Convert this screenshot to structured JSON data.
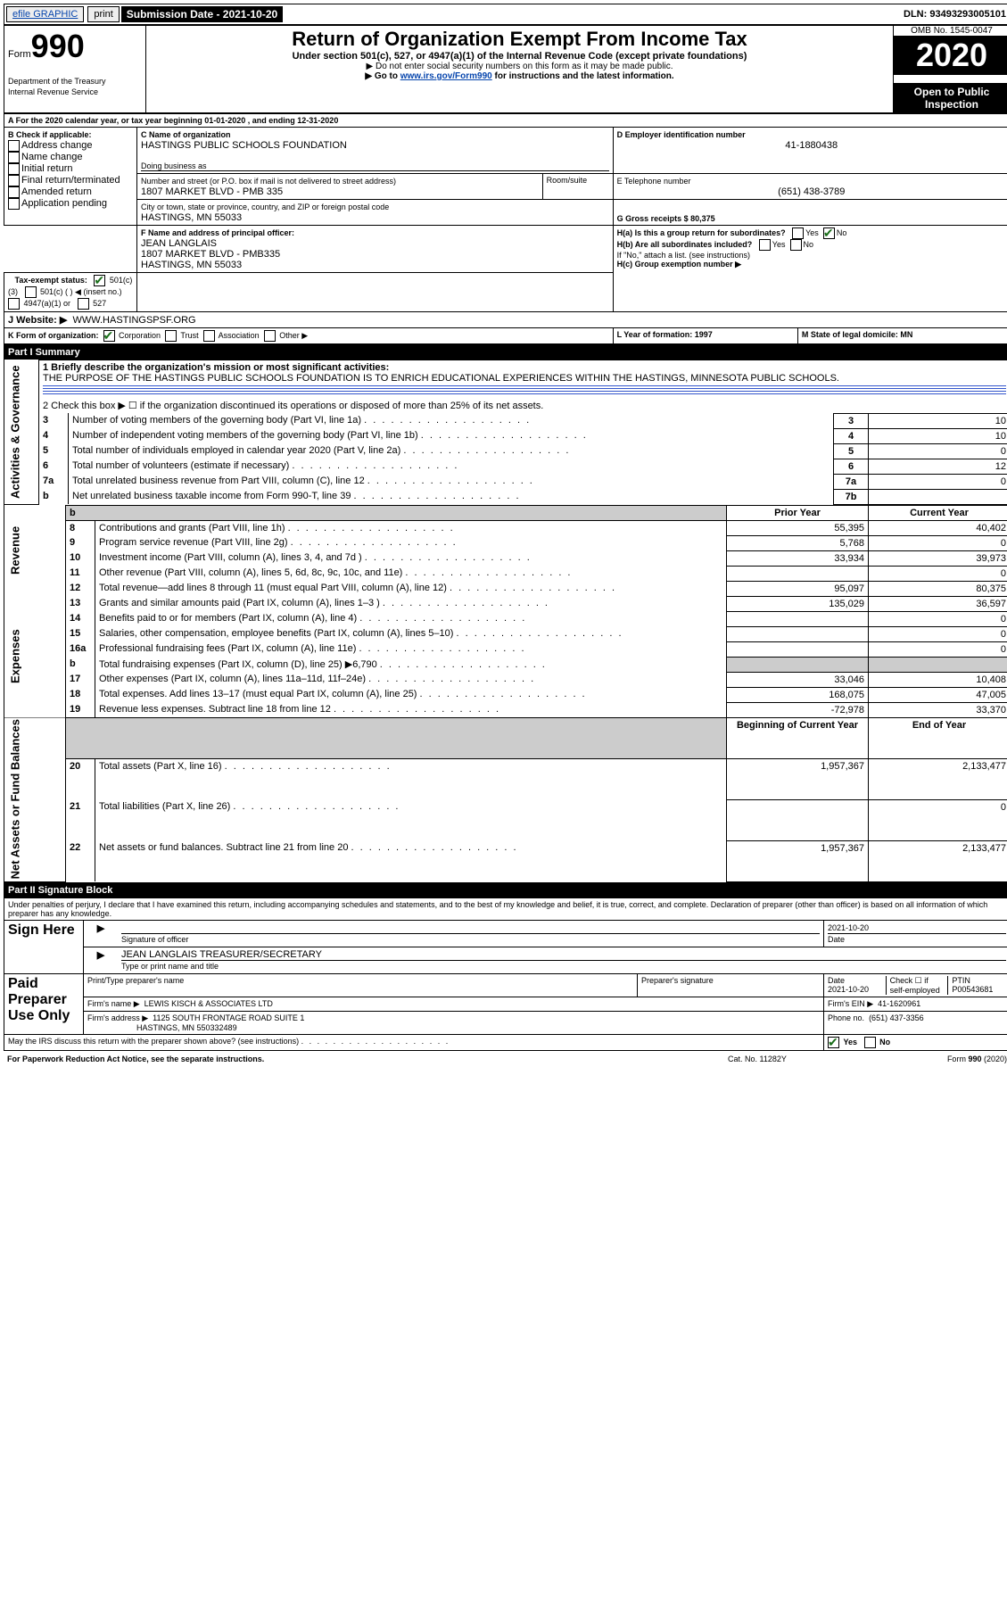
{
  "topbar": {
    "efile": "efile GRAPHIC",
    "print": "print",
    "submission_label": "Submission Date - 2021-10-20",
    "dln": "DLN: 93493293005101"
  },
  "header": {
    "form_label": "Form",
    "form_number": "990",
    "dept1": "Department of the Treasury",
    "dept2": "Internal Revenue Service",
    "title": "Return of Organization Exempt From Income Tax",
    "subtitle": "Under section 501(c), 527, or 4947(a)(1) of the Internal Revenue Code (except private foundations)",
    "sub2": "▶ Do not enter social security numbers on this form as it may be made public.",
    "sub3a": "▶ Go to ",
    "sub3_link": "www.irs.gov/Form990",
    "sub3b": " for instructions and the latest information.",
    "omb_label": "OMB No. 1545-0047",
    "year": "2020",
    "open_public": "Open to Public Inspection"
  },
  "sectionA": {
    "line": "A For the 2020 calendar year, or tax year beginning 01-01-2020   , and ending 12-31-2020"
  },
  "sectionB": {
    "label": "B Check if applicable:",
    "items": [
      "Address change",
      "Name change",
      "Initial return",
      "Final return/terminated",
      "Amended return",
      "Application pending"
    ]
  },
  "sectionC": {
    "name_label": "C Name of organization",
    "name": "HASTINGS PUBLIC SCHOOLS FOUNDATION",
    "dba_label": "Doing business as",
    "street_label": "Number and street (or P.O. box if mail is not delivered to street address)",
    "room_label": "Room/suite",
    "street": "1807 MARKET BLVD - PMB 335",
    "city_label": "City or town, state or province, country, and ZIP or foreign postal code",
    "city": "HASTINGS, MN  55033"
  },
  "sectionD": {
    "label": "D Employer identification number",
    "value": "41-1880438"
  },
  "sectionE": {
    "label": "E Telephone number",
    "value": "(651) 438-3789"
  },
  "sectionG": {
    "label": "G Gross receipts $ 80,375"
  },
  "sectionF": {
    "label": "F Name and address of principal officer:",
    "name": "JEAN LANGLAIS",
    "addr1": "1807 MARKET BLVD - PMB335",
    "addr2": "HASTINGS, MN  55033"
  },
  "sectionH": {
    "ha": "H(a)  Is this a group return for subordinates?",
    "hb": "H(b)  Are all subordinates included?",
    "hb_note": "If \"No,\" attach a list. (see instructions)",
    "hc": "H(c)  Group exemption number ▶",
    "yes": "Yes",
    "no": "No"
  },
  "sectionI": {
    "label": "Tax-exempt status:",
    "opt1": "501(c)(3)",
    "opt2": "501(c) (  ) ◀ (insert no.)",
    "opt3": "4947(a)(1) or",
    "opt4": "527"
  },
  "sectionJ": {
    "label": "J   Website: ▶",
    "value": "WWW.HASTINGSPSF.ORG"
  },
  "sectionK": {
    "label": "K Form of organization:",
    "opts": [
      "Corporation",
      "Trust",
      "Association",
      "Other ▶"
    ]
  },
  "sectionL": {
    "label": "L Year of formation: 1997"
  },
  "sectionM": {
    "label": "M State of legal domicile: MN"
  },
  "part1": {
    "header": "Part I    Summary",
    "line1_label": "1  Briefly describe the organization's mission or most significant activities:",
    "line1_text": "THE PURPOSE OF THE HASTINGS PUBLIC SCHOOLS FOUNDATION IS TO ENRICH EDUCATIONAL EXPERIENCES WITHIN THE HASTINGS, MINNESOTA PUBLIC SCHOOLS.",
    "line2": "2  Check this box ▶ ☐  if the organization discontinued its operations or disposed of more than 25% of its net assets.",
    "side_labels": {
      "gov": "Activities & Governance",
      "rev": "Revenue",
      "exp": "Expenses",
      "net": "Net Assets or Fund Balances"
    },
    "col_prior": "Prior Year",
    "col_current": "Current Year",
    "col_begin": "Beginning of Current Year",
    "col_end": "End of Year",
    "rows_gov": [
      {
        "n": "3",
        "t": "Number of voting members of the governing body (Part VI, line 1a)",
        "box": "3",
        "v": "10"
      },
      {
        "n": "4",
        "t": "Number of independent voting members of the governing body (Part VI, line 1b)",
        "box": "4",
        "v": "10"
      },
      {
        "n": "5",
        "t": "Total number of individuals employed in calendar year 2020 (Part V, line 2a)",
        "box": "5",
        "v": "0"
      },
      {
        "n": "6",
        "t": "Total number of volunteers (estimate if necessary)",
        "box": "6",
        "v": "12"
      },
      {
        "n": "7a",
        "t": "Total unrelated business revenue from Part VIII, column (C), line 12",
        "box": "7a",
        "v": "0"
      },
      {
        "n": "b",
        "t": "Net unrelated business taxable income from Form 990-T, line 39",
        "box": "7b",
        "v": ""
      }
    ],
    "rows_rev": [
      {
        "n": "8",
        "t": "Contributions and grants (Part VIII, line 1h)",
        "p": "55,395",
        "c": "40,402"
      },
      {
        "n": "9",
        "t": "Program service revenue (Part VIII, line 2g)",
        "p": "5,768",
        "c": "0"
      },
      {
        "n": "10",
        "t": "Investment income (Part VIII, column (A), lines 3, 4, and 7d )",
        "p": "33,934",
        "c": "39,973"
      },
      {
        "n": "11",
        "t": "Other revenue (Part VIII, column (A), lines 5, 6d, 8c, 9c, 10c, and 11e)",
        "p": "",
        "c": "0"
      },
      {
        "n": "12",
        "t": "Total revenue—add lines 8 through 11 (must equal Part VIII, column (A), line 12)",
        "p": "95,097",
        "c": "80,375"
      }
    ],
    "rows_exp": [
      {
        "n": "13",
        "t": "Grants and similar amounts paid (Part IX, column (A), lines 1–3 )",
        "p": "135,029",
        "c": "36,597"
      },
      {
        "n": "14",
        "t": "Benefits paid to or for members (Part IX, column (A), line 4)",
        "p": "",
        "c": "0"
      },
      {
        "n": "15",
        "t": "Salaries, other compensation, employee benefits (Part IX, column (A), lines 5–10)",
        "p": "",
        "c": "0"
      },
      {
        "n": "16a",
        "t": "Professional fundraising fees (Part IX, column (A), line 11e)",
        "p": "",
        "c": "0"
      },
      {
        "n": "b",
        "t": "Total fundraising expenses (Part IX, column (D), line 25) ▶6,790",
        "p": "shaded",
        "c": "shaded"
      },
      {
        "n": "17",
        "t": "Other expenses (Part IX, column (A), lines 11a–11d, 11f–24e)",
        "p": "33,046",
        "c": "10,408"
      },
      {
        "n": "18",
        "t": "Total expenses. Add lines 13–17 (must equal Part IX, column (A), line 25)",
        "p": "168,075",
        "c": "47,005"
      },
      {
        "n": "19",
        "t": "Revenue less expenses. Subtract line 18 from line 12",
        "p": "-72,978",
        "c": "33,370"
      }
    ],
    "rows_net": [
      {
        "n": "20",
        "t": "Total assets (Part X, line 16)",
        "p": "1,957,367",
        "c": "2,133,477"
      },
      {
        "n": "21",
        "t": "Total liabilities (Part X, line 26)",
        "p": "",
        "c": "0"
      },
      {
        "n": "22",
        "t": "Net assets or fund balances. Subtract line 21 from line 20",
        "p": "1,957,367",
        "c": "2,133,477"
      }
    ]
  },
  "part2": {
    "header": "Part II    Signature Block",
    "perjury": "Under penalties of perjury, I declare that I have examined this return, including accompanying schedules and statements, and to the best of my knowledge and belief, it is true, correct, and complete. Declaration of preparer (other than officer) is based on all information of which preparer has any knowledge.",
    "sign_here": "Sign Here",
    "sig_officer": "Signature of officer",
    "sig_date_label": "Date",
    "sig_date": "2021-10-20",
    "officer_name": "JEAN LANGLAIS  TREASURER/SECRETARY",
    "type_name": "Type or print name and title",
    "paid": "Paid Preparer Use Only",
    "p_name_label": "Print/Type preparer's name",
    "p_sig_label": "Preparer's signature",
    "p_date_label": "Date",
    "p_date": "2021-10-20",
    "p_check_label": "Check ☐ if self-employed",
    "ptin_label": "PTIN",
    "ptin": "P00543681",
    "firm_name_label": "Firm's name   ▶",
    "firm_name": "LEWIS KISCH & ASSOCIATES LTD",
    "firm_ein_label": "Firm's EIN ▶",
    "firm_ein": "41-1620961",
    "firm_addr_label": "Firm's address ▶",
    "firm_addr1": "1125 SOUTH FRONTAGE ROAD SUITE 1",
    "firm_addr2": "HASTINGS, MN  550332489",
    "phone_label": "Phone no.",
    "phone": "(651) 437-3356",
    "discuss": "May the IRS discuss this return with the preparer shown above? (see instructions)",
    "yes": "Yes",
    "no": "No"
  },
  "footer": {
    "left": "For Paperwork Reduction Act Notice, see the separate instructions.",
    "mid": "Cat. No. 11282Y",
    "right": "Form 990 (2020)"
  },
  "colors": {
    "link": "#0645ad",
    "check": "#1a6e1a"
  }
}
